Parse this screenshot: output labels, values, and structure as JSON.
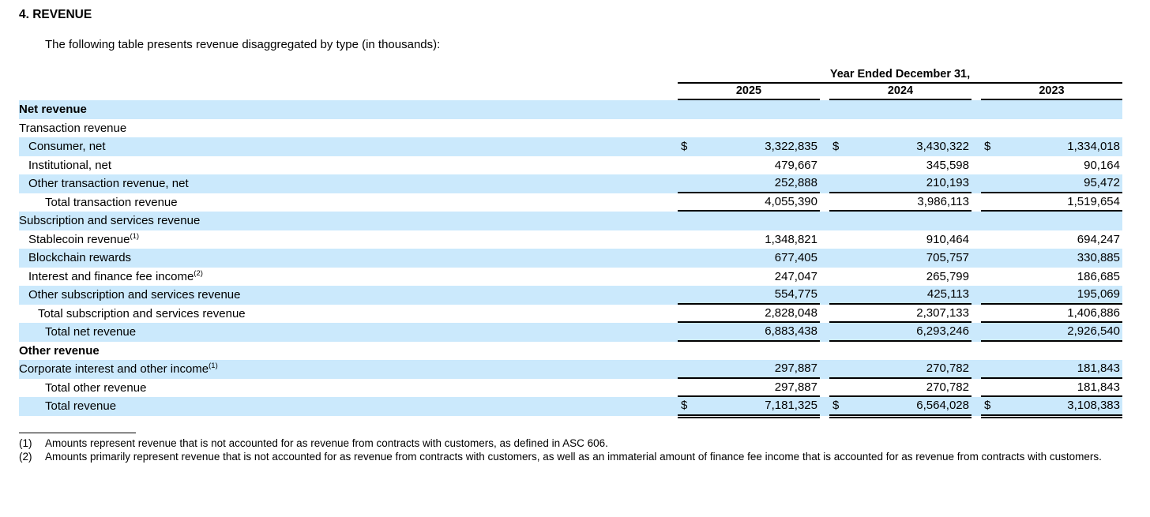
{
  "page": {
    "section_title": "4. REVENUE",
    "intro": "The following table presents revenue disaggregated by type (in thousands):"
  },
  "table": {
    "period_header": "Year Ended December 31,",
    "columns": [
      "2025",
      "2024",
      "2023"
    ],
    "currency_symbol": "$",
    "rows": [
      {
        "label": "Net revenue",
        "sup": "",
        "bold": true,
        "indent": 0,
        "shaded": true,
        "dollar": false,
        "rule": "none",
        "values": [
          "",
          "",
          ""
        ]
      },
      {
        "label": "Transaction revenue",
        "sup": "",
        "bold": false,
        "indent": 0,
        "shaded": false,
        "dollar": false,
        "rule": "none",
        "values": [
          "",
          "",
          ""
        ]
      },
      {
        "label": "Consumer, net",
        "sup": "",
        "bold": false,
        "indent": 1,
        "shaded": true,
        "dollar": true,
        "rule": "none",
        "values": [
          "3,322,835",
          "3,430,322",
          "1,334,018"
        ]
      },
      {
        "label": "Institutional, net",
        "sup": "",
        "bold": false,
        "indent": 1,
        "shaded": false,
        "dollar": false,
        "rule": "none",
        "values": [
          "479,667",
          "345,598",
          "90,164"
        ]
      },
      {
        "label": "Other transaction revenue, net",
        "sup": "",
        "bold": false,
        "indent": 1,
        "shaded": true,
        "dollar": false,
        "rule": "single",
        "values": [
          "252,888",
          "210,193",
          "95,472"
        ]
      },
      {
        "label": "Total transaction revenue",
        "sup": "",
        "bold": false,
        "indent": 3,
        "shaded": false,
        "dollar": false,
        "rule": "single",
        "values": [
          "4,055,390",
          "3,986,113",
          "1,519,654"
        ]
      },
      {
        "label": "Subscription and services revenue",
        "sup": "",
        "bold": false,
        "indent": 0,
        "shaded": true,
        "dollar": false,
        "rule": "none",
        "values": [
          "",
          "",
          ""
        ]
      },
      {
        "label": "Stablecoin revenue",
        "sup": "(1)",
        "bold": false,
        "indent": 1,
        "shaded": false,
        "dollar": false,
        "rule": "none",
        "values": [
          "1,348,821",
          "910,464",
          "694,247"
        ]
      },
      {
        "label": "Blockchain rewards",
        "sup": "",
        "bold": false,
        "indent": 1,
        "shaded": true,
        "dollar": false,
        "rule": "none",
        "values": [
          "677,405",
          "705,757",
          "330,885"
        ]
      },
      {
        "label": "Interest and finance fee income",
        "sup": "(2)",
        "bold": false,
        "indent": 1,
        "shaded": false,
        "dollar": false,
        "rule": "none",
        "values": [
          "247,047",
          "265,799",
          "186,685"
        ]
      },
      {
        "label": "Other subscription and services revenue",
        "sup": "",
        "bold": false,
        "indent": 1,
        "shaded": true,
        "dollar": false,
        "rule": "single",
        "values": [
          "554,775",
          "425,113",
          "195,069"
        ]
      },
      {
        "label": "Total subscription and services revenue",
        "sup": "",
        "bold": false,
        "indent": 2,
        "shaded": false,
        "dollar": false,
        "rule": "single",
        "values": [
          "2,828,048",
          "2,307,133",
          "1,406,886"
        ]
      },
      {
        "label": "Total net revenue",
        "sup": "",
        "bold": false,
        "indent": 3,
        "shaded": true,
        "dollar": false,
        "rule": "single",
        "values": [
          "6,883,438",
          "6,293,246",
          "2,926,540"
        ]
      },
      {
        "label": "Other revenue",
        "sup": "",
        "bold": true,
        "indent": 0,
        "shaded": false,
        "dollar": false,
        "rule": "none",
        "values": [
          "",
          "",
          ""
        ]
      },
      {
        "label": "Corporate interest and other income",
        "sup": "(1)",
        "bold": false,
        "indent": 0,
        "shaded": true,
        "dollar": false,
        "rule": "single",
        "values": [
          "297,887",
          "270,782",
          "181,843"
        ]
      },
      {
        "label": "Total other revenue",
        "sup": "",
        "bold": false,
        "indent": 3,
        "shaded": false,
        "dollar": false,
        "rule": "single",
        "values": [
          "297,887",
          "270,782",
          "181,843"
        ]
      },
      {
        "label": "Total revenue",
        "sup": "",
        "bold": false,
        "indent": 3,
        "shaded": true,
        "dollar": true,
        "rule": "double",
        "values": [
          "7,181,325",
          "6,564,028",
          "3,108,383"
        ]
      }
    ]
  },
  "footnotes": [
    {
      "marker": "(1)",
      "text": "Amounts represent revenue that is not accounted for as revenue from contracts with customers, as defined in ASC 606."
    },
    {
      "marker": "(2)",
      "text": "Amounts primarily represent revenue that is not accounted for as revenue from contracts with customers, as well as an immaterial amount of finance fee income that is accounted for as revenue from contracts with customers."
    }
  ],
  "colors": {
    "stripe": "#cbe9fc",
    "text": "#000000",
    "rule": "#000000"
  }
}
